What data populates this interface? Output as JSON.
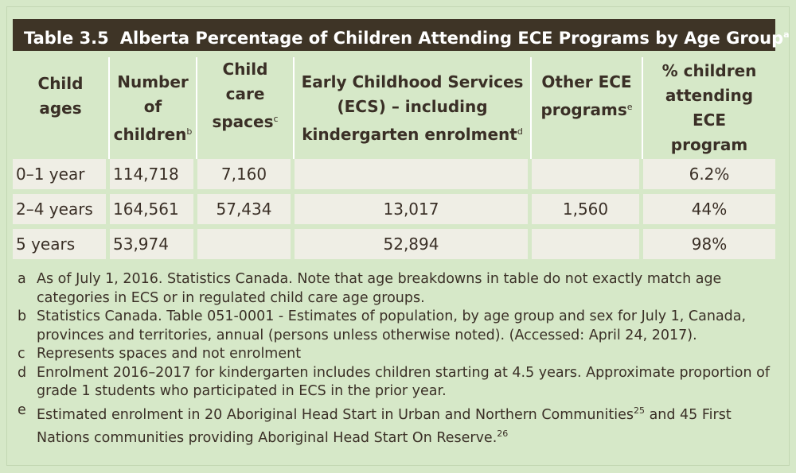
{
  "table": {
    "number": "Table 3.5",
    "title": "Alberta Percentage of Children Attending ECE Programs by Age Group",
    "title_note": "a",
    "headers": [
      {
        "line1": "Child",
        "line2": "ages",
        "line3": "",
        "note": ""
      },
      {
        "line1": "Number",
        "line2": "of",
        "line3": "children",
        "note": "b"
      },
      {
        "line1": "Child care",
        "line2": "spaces",
        "line3": "",
        "note": "c"
      },
      {
        "line1": "Early Childhood Services",
        "line2": "(ECS) – including",
        "line3": "kindergarten enrolment",
        "note": "d"
      },
      {
        "line1": "Other ECE",
        "line2": "programs",
        "line3": "",
        "note": "e"
      },
      {
        "line1": "% children",
        "line2": "attending ECE",
        "line3": "program",
        "note": ""
      }
    ],
    "rows": [
      {
        "age": "0–1 year",
        "children": "114,718",
        "spaces": "7,160",
        "ecs": "",
        "other": "",
        "percent": "6.2%"
      },
      {
        "age": "2–4 years",
        "children": "164,561",
        "spaces": "57,434",
        "ecs": "13,017",
        "other": "1,560",
        "percent": "44%"
      },
      {
        "age": "5 years",
        "children": "53,974",
        "spaces": "",
        "ecs": "52,894",
        "other": "",
        "percent": "98%"
      }
    ]
  },
  "footnotes": [
    {
      "letter": "a",
      "line1": "As of July 1, 2016. Statistics Canada. Note that age breakdowns in table do not exactly match age",
      "line2": "categories in ECS or in regulated child care age groups.",
      "sup": ""
    },
    {
      "letter": "b",
      "line1": "Statistics Canada. Table 051-0001 - Estimates of population, by age group and sex for July 1, Canada,",
      "line2": "provinces and territories, annual (persons unless otherwise noted). (Accessed: April 24, 2017).",
      "sup": ""
    },
    {
      "letter": "c",
      "line1": "Represents spaces and not enrolment",
      "line2": "",
      "sup": ""
    },
    {
      "letter": "d",
      "line1": "Enrolment 2016–2017 for kindergarten includes children starting at 4.5 years. Approximate proportion of",
      "line2": "grade 1 students who participated in ECS in the prior year.",
      "sup": ""
    },
    {
      "letter": "e",
      "line1a": "Estimated enrolment in 20 Aboriginal Head Start in Urban and Northern Communities",
      "sup1": "25",
      "line1b": " and 45 First",
      "line2": "Nations communities providing Aboriginal Head Start On Reserve.",
      "sup": "26"
    }
  ]
}
